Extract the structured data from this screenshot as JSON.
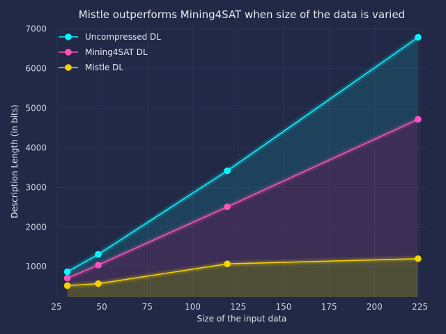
{
  "chart_data": {
    "type": "line",
    "title": "Mistle outperforms Mining4SAT when size of the data is varied",
    "xlabel": "Size of the input data",
    "ylabel": "Description Length (in bits)",
    "xlim": [
      25,
      229
    ],
    "ylim": [
      230,
      7100
    ],
    "xticks": [
      25,
      50,
      75,
      100,
      125,
      150,
      175,
      200,
      225
    ],
    "yticks": [
      1000,
      2000,
      3000,
      4000,
      5000,
      6000,
      7000
    ],
    "x": [
      31,
      48,
      119,
      224
    ],
    "grid": true,
    "legend_position": "top-left",
    "background": "#212946",
    "series": [
      {
        "name": "Uncompressed DL",
        "color": "#08F7FE",
        "values": [
          870,
          1310,
          3420,
          6790
        ]
      },
      {
        "name": "Mining4SAT DL",
        "color": "#FE53BB",
        "values": [
          710,
          1040,
          2510,
          4720
        ]
      },
      {
        "name": "Mistle DL",
        "color": "#F5D300",
        "values": [
          520,
          570,
          1070,
          1200
        ]
      }
    ]
  }
}
